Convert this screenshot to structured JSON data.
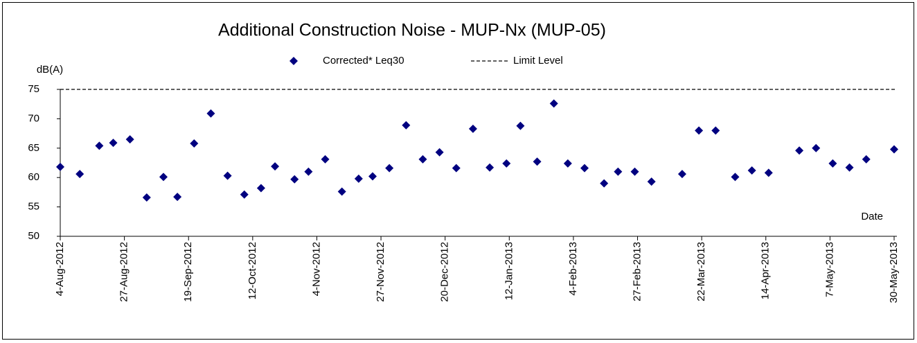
{
  "chart_data": {
    "type": "scatter",
    "title": "Additional Construction Noise - MUP-Nx  (MUP-05)",
    "y_label": "dB(A)",
    "x_label": "Date",
    "xlim": [
      "2012-08-04",
      "2013-05-31"
    ],
    "xticks": [
      {
        "value": "2012-08-04",
        "label": "4-Aug-2012"
      },
      {
        "value": "2012-08-27",
        "label": "27-Aug-2012"
      },
      {
        "value": "2012-09-19",
        "label": "19-Sep-2012"
      },
      {
        "value": "2012-10-12",
        "label": "12-Oct-2012"
      },
      {
        "value": "2012-11-04",
        "label": "4-Nov-2012"
      },
      {
        "value": "2012-11-27",
        "label": "27-Nov-2012"
      },
      {
        "value": "2012-12-20",
        "label": "20-Dec-2012"
      },
      {
        "value": "2013-01-12",
        "label": "12-Jan-2013"
      },
      {
        "value": "2013-02-04",
        "label": "4-Feb-2013"
      },
      {
        "value": "2013-02-27",
        "label": "27-Feb-2013"
      },
      {
        "value": "2013-03-22",
        "label": "22-Mar-2013"
      },
      {
        "value": "2013-04-14",
        "label": "14-Apr-2013"
      },
      {
        "value": "2013-05-07",
        "label": "7-May-2013"
      },
      {
        "value": "2013-05-30",
        "label": "30-May-2013"
      }
    ],
    "ylim": [
      50,
      75
    ],
    "yticks": [
      50,
      55,
      60,
      65,
      70,
      75
    ],
    "grid": false,
    "series": [
      {
        "name": "Corrected* Leq30",
        "color": "#000080",
        "marker": "diamond",
        "x": [
          "2012-08-04",
          "2012-08-11",
          "2012-08-18",
          "2012-08-23",
          "2012-08-29",
          "2012-09-04",
          "2012-09-10",
          "2012-09-15",
          "2012-09-21",
          "2012-09-27",
          "2012-10-03",
          "2012-10-09",
          "2012-10-15",
          "2012-10-20",
          "2012-10-27",
          "2012-11-01",
          "2012-11-07",
          "2012-11-13",
          "2012-11-19",
          "2012-11-24",
          "2012-11-30",
          "2012-12-06",
          "2012-12-12",
          "2012-12-18",
          "2012-12-24",
          "2012-12-30",
          "2013-01-05",
          "2013-01-11",
          "2013-01-16",
          "2013-01-22",
          "2013-01-28",
          "2013-02-02",
          "2013-02-08",
          "2013-02-15",
          "2013-02-20",
          "2013-02-26",
          "2013-03-04",
          "2013-03-15",
          "2013-03-21",
          "2013-03-27",
          "2013-04-03",
          "2013-04-09",
          "2013-04-15",
          "2013-04-26",
          "2013-05-02",
          "2013-05-08",
          "2013-05-14",
          "2013-05-20",
          "2013-05-30"
        ],
        "values": [
          61.8,
          60.6,
          65.4,
          65.9,
          66.5,
          56.6,
          60.1,
          56.7,
          65.8,
          70.9,
          60.3,
          57.1,
          58.2,
          61.9,
          59.7,
          61.0,
          63.1,
          57.6,
          59.8,
          60.2,
          61.6,
          68.9,
          63.1,
          64.3,
          61.6,
          68.3,
          61.7,
          62.4,
          68.8,
          62.7,
          72.6,
          62.4,
          61.6,
          59.0,
          61.0,
          61.0,
          59.3,
          60.6,
          68.0,
          68.0,
          60.1,
          61.2,
          60.8,
          64.6,
          65.0,
          62.4,
          61.7,
          63.1,
          64.8
        ]
      },
      {
        "name": "Limit Level",
        "color": "#000000",
        "dash": true,
        "x": [
          "2012-08-04",
          "2013-05-31"
        ],
        "values": [
          75,
          75
        ]
      }
    ]
  }
}
